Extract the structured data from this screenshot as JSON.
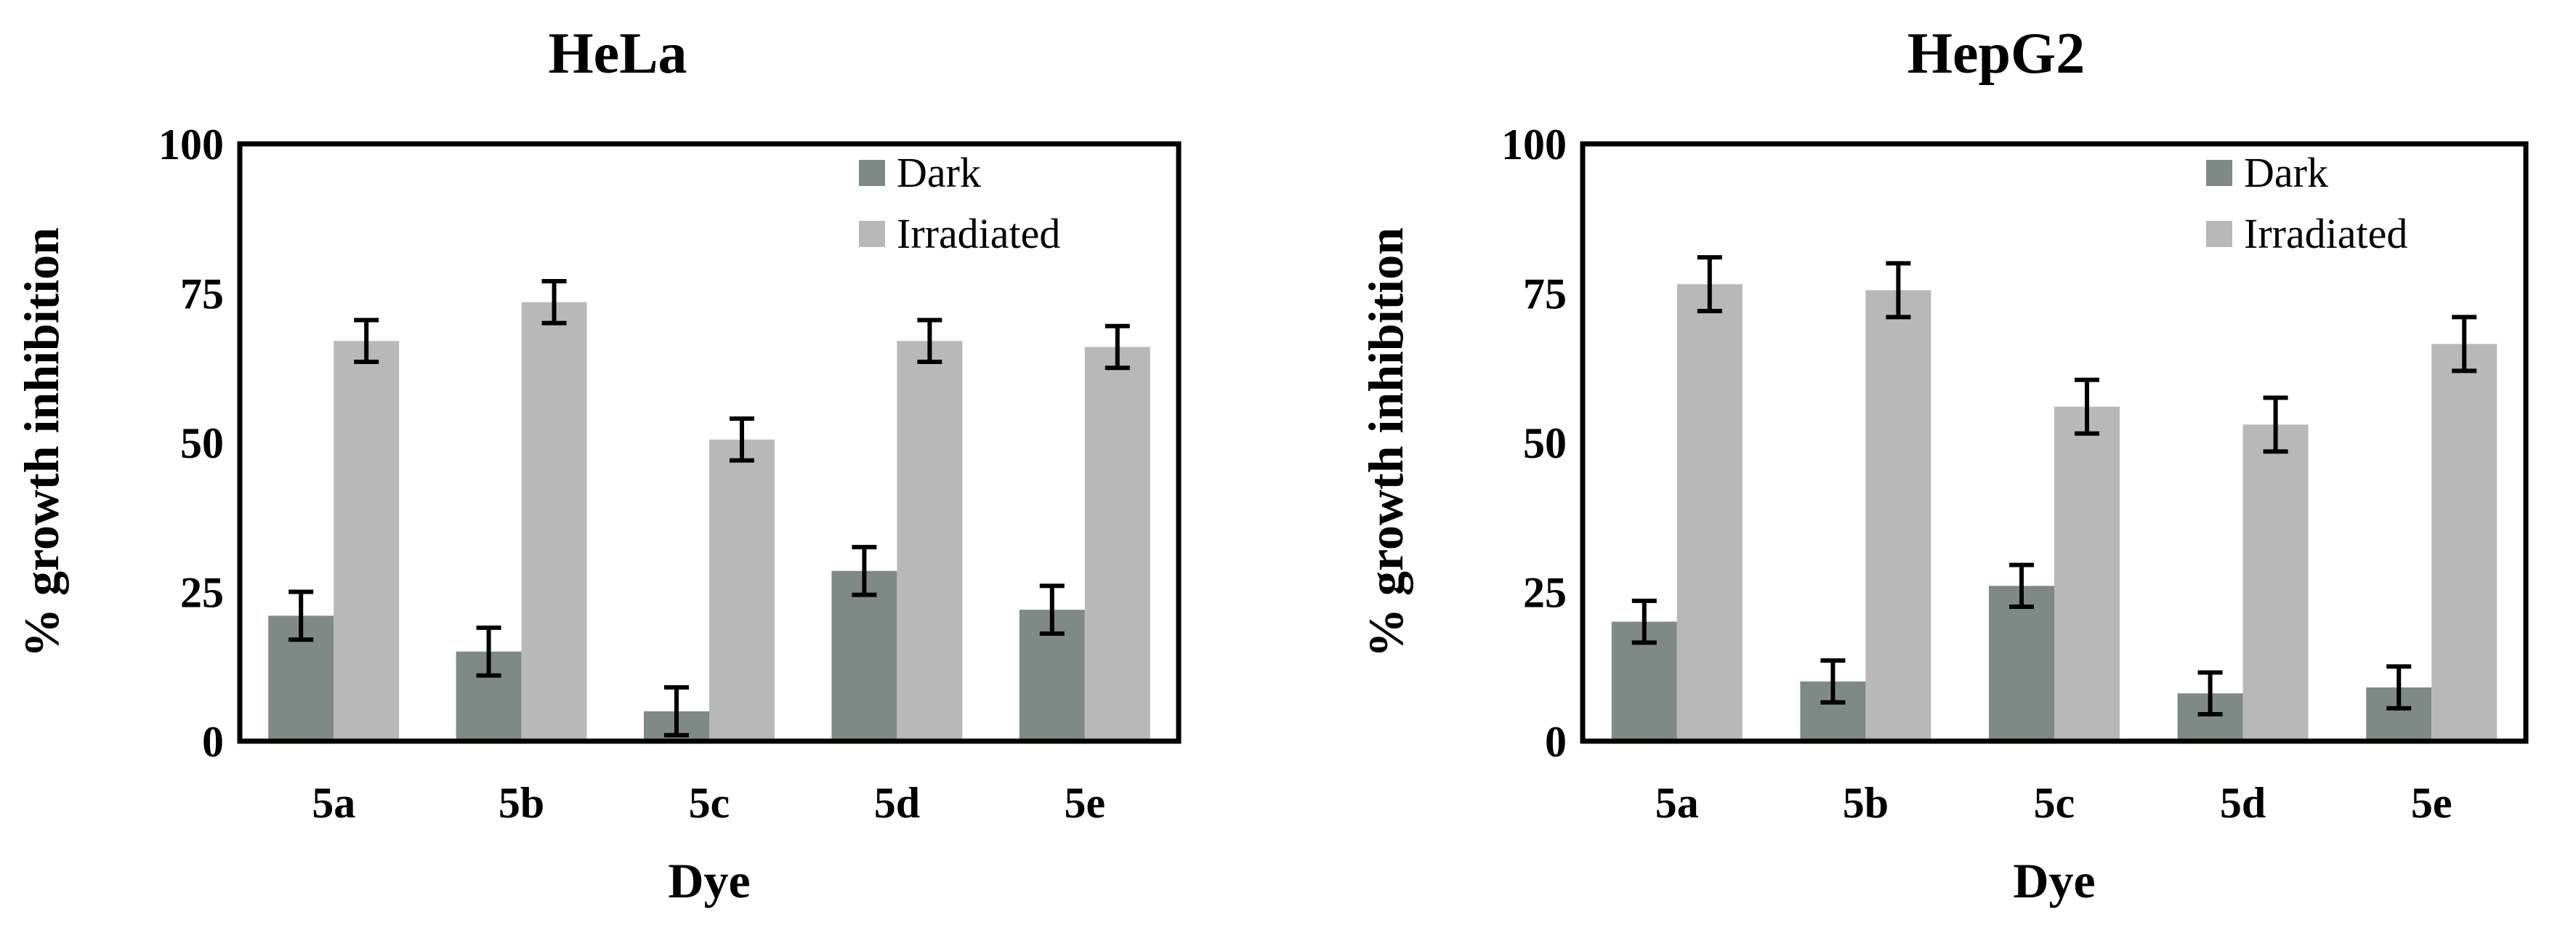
{
  "chart_data": [
    {
      "type": "bar",
      "title": "HeLa",
      "xlabel": "Dye",
      "ylabel": "% growth inhibition",
      "ylim": [
        0,
        100
      ],
      "yticks": [
        0,
        25,
        50,
        75,
        100
      ],
      "categories": [
        "5a",
        "5b",
        "5c",
        "5d",
        "5e"
      ],
      "legend_position": "top-right",
      "series": [
        {
          "name": "Dark",
          "color": "#7f8a86",
          "values": [
            21,
            15,
            5,
            28.5,
            22
          ],
          "errors": [
            4,
            4,
            4,
            4,
            4
          ]
        },
        {
          "name": "Irradiated",
          "color": "#b8b8b8",
          "values": [
            67,
            73.5,
            50.5,
            67,
            66
          ],
          "errors": [
            3.5,
            3.5,
            3.5,
            3.5,
            3.5
          ]
        }
      ]
    },
    {
      "type": "bar",
      "title": "HepG2",
      "xlabel": "Dye",
      "ylabel": "% growth inhibition",
      "ylim": [
        0,
        100
      ],
      "yticks": [
        0,
        25,
        50,
        75,
        100
      ],
      "categories": [
        "5a",
        "5b",
        "5c",
        "5d",
        "5e"
      ],
      "legend_position": "top-right",
      "series": [
        {
          "name": "Dark",
          "color": "#7f8a86",
          "values": [
            20,
            10,
            26,
            8,
            9
          ],
          "errors": [
            3.5,
            3.5,
            3.5,
            3.5,
            3.5
          ]
        },
        {
          "name": "Irradiated",
          "color": "#b8b8b8",
          "values": [
            76.5,
            75.5,
            56,
            53,
            66.5
          ],
          "errors": [
            4.5,
            4.5,
            4.5,
            4.5,
            4.5
          ]
        }
      ]
    }
  ]
}
